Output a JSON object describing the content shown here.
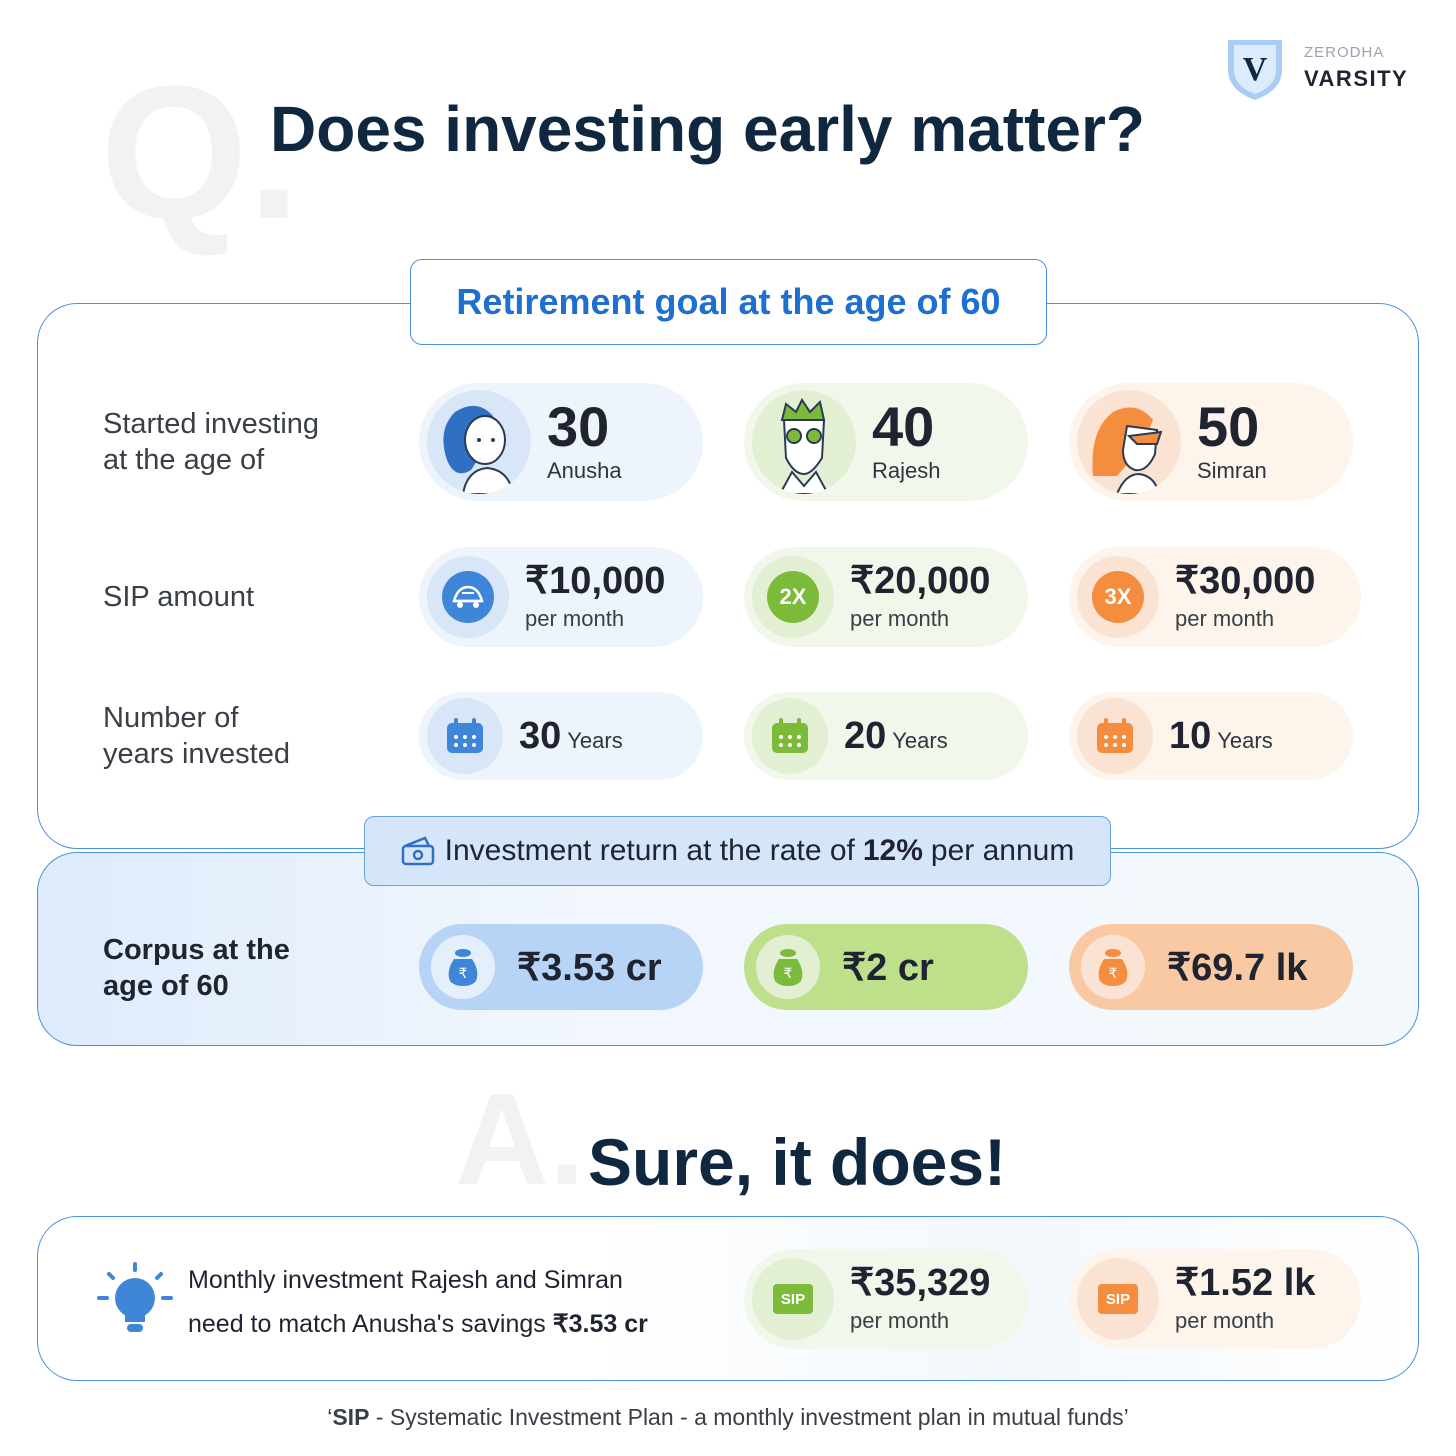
{
  "brand": {
    "sub": "ZERODHA",
    "name": "VARSITY",
    "shield_letter": "V"
  },
  "question": {
    "letter": "Q.",
    "title": "Does investing early matter?"
  },
  "goal_label": "Retirement goal at the age of 60",
  "row_labels": {
    "started": [
      "Started investing",
      "at the  age of"
    ],
    "sip": "SIP amount",
    "years": [
      "Number of",
      "years invested"
    ],
    "corpus": [
      "Corpus at the",
      "age of 60"
    ]
  },
  "investors": [
    {
      "name": "Anusha",
      "age": "30",
      "sip": "₹10,000",
      "sip_badge": "turtle-icon",
      "years_num": "30",
      "corpus": "₹3.53 cr",
      "color": "#3f86d9"
    },
    {
      "name": "Rajesh",
      "age": "40",
      "sip": "₹20,000",
      "sip_badge": "2X",
      "years_num": "20",
      "corpus": "₹2 cr",
      "color": "#7cbb3a"
    },
    {
      "name": "Simran",
      "age": "50",
      "sip": "₹30,000",
      "sip_badge": "3X",
      "years_num": "10",
      "corpus": "₹69.7 lk",
      "color": "#f48d3d"
    }
  ],
  "per_month": "per month",
  "years_word": "Years",
  "rate": {
    "prefix": "Investment return at the rate of",
    "value": "12%",
    "suffix": "per annum"
  },
  "answer": {
    "letter": "A.",
    "text": "Sure, it does!"
  },
  "match": {
    "line1": "Monthly investment Rajesh and Simran",
    "line2_prefix": "need to match Anusha's savings",
    "line2_value": "₹3.53 cr",
    "badge": "SIP",
    "items": [
      {
        "amount": "₹35,329",
        "sub": "per month"
      },
      {
        "amount": "₹1.52 lk",
        "sub": "per month"
      }
    ]
  },
  "footnote": {
    "open": "‘",
    "bold": "SIP",
    "text": " - Systematic Investment Plan - a monthly investment plan in mutual funds’"
  }
}
